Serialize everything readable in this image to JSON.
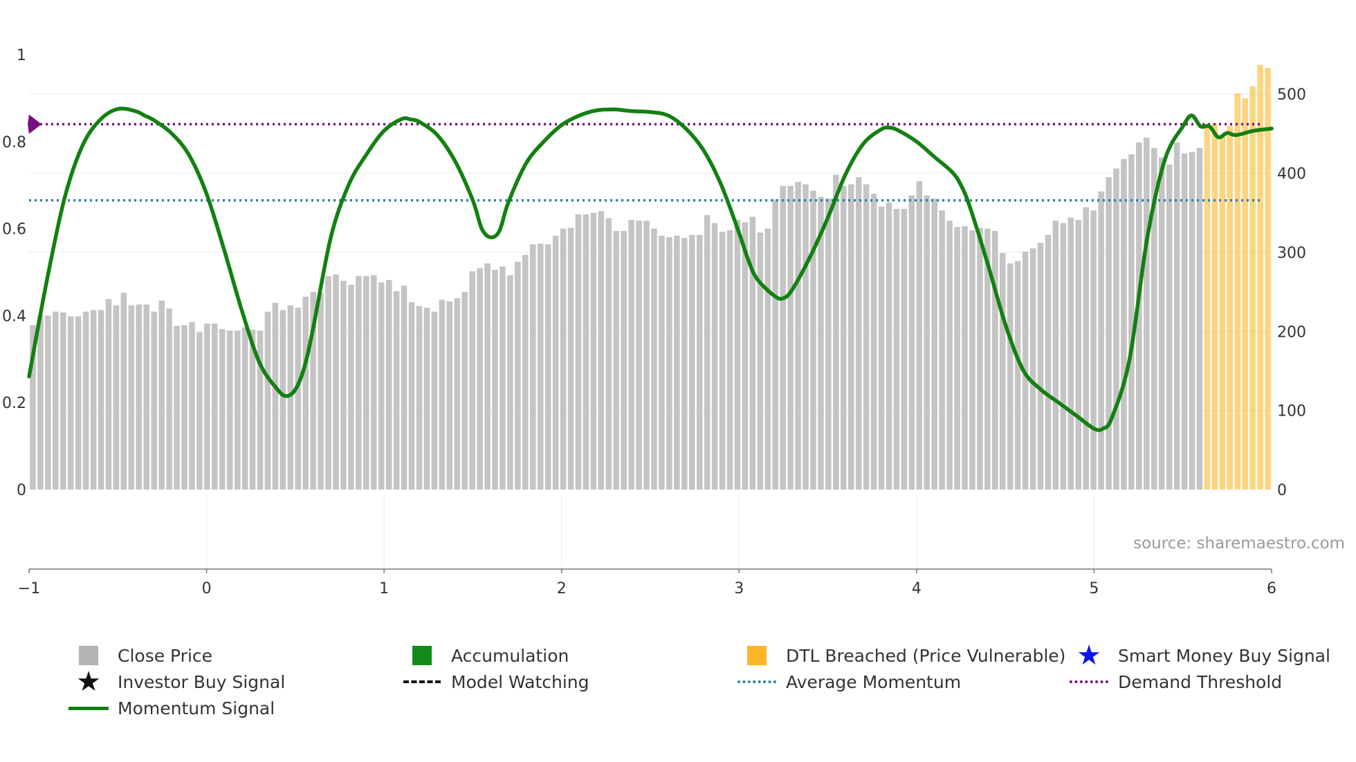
{
  "chart_data": {
    "type": "bar",
    "title": "",
    "source": "source: sharemaestro.com",
    "x_axis": {
      "min": -1,
      "max": 6,
      "ticks": [
        "−1",
        "0",
        "1",
        "2",
        "3",
        "4",
        "5",
        "6"
      ]
    },
    "y_left": {
      "min": 0,
      "max": 1,
      "ticks": [
        "0",
        "0.2",
        "0.4",
        "0.6",
        "0.8",
        "1"
      ],
      "tick_values": [
        0,
        0.2,
        0.4,
        0.6,
        0.8,
        1
      ]
    },
    "y_right": {
      "min": 0,
      "max": 550,
      "ticks": [
        "0",
        "100",
        "200",
        "300",
        "400",
        "500"
      ],
      "tick_values": [
        0,
        100,
        200,
        300,
        400,
        500
      ]
    },
    "close_price": {
      "name": "Close Price",
      "color": "#c4c4c4",
      "values": [
        208,
        220,
        220,
        225,
        224,
        219,
        219,
        225,
        227,
        227,
        241,
        233,
        249,
        233,
        234,
        234,
        225,
        239,
        229,
        207,
        208,
        212,
        199,
        210,
        210,
        203,
        201,
        201,
        205,
        202,
        201,
        225,
        236,
        227,
        233,
        230,
        244,
        250,
        249,
        270,
        272,
        264,
        259,
        270,
        270,
        271,
        262,
        265,
        251,
        258,
        237,
        232,
        230,
        225,
        240,
        238,
        242,
        250,
        276,
        280,
        286,
        278,
        282,
        271,
        288,
        297,
        310,
        311,
        310,
        321,
        330,
        331,
        348,
        348,
        350,
        352,
        343,
        327,
        327,
        341,
        340,
        340,
        330,
        321,
        319,
        321,
        318,
        322,
        322,
        347,
        337,
        326,
        328,
        341,
        338,
        345,
        325,
        330,
        367,
        384,
        384,
        389,
        386,
        378,
        370,
        368,
        398,
        384,
        386,
        395,
        386,
        374,
        358,
        363,
        355,
        355,
        372,
        390,
        372,
        368,
        353,
        340,
        332,
        333,
        328,
        331,
        330,
        327,
        299,
        286,
        289,
        301,
        305,
        312,
        322,
        340,
        337,
        344,
        341,
        357,
        353,
        377,
        395,
        406,
        418,
        424,
        439,
        445,
        432,
        420,
        411,
        439,
        425,
        427,
        432
      ],
      "breached_values": [
        459,
        463,
        446,
        460,
        501,
        495,
        510,
        537,
        533
      ]
    },
    "breached_name": "DTL Breached (Price Vulnerable)",
    "breached_color": "#fcb72a",
    "momentum": {
      "name": "Momentum Signal",
      "color": "#138012",
      "x": [
        -1.0,
        -0.9,
        -0.8,
        -0.7,
        -0.6,
        -0.5,
        -0.4,
        -0.35,
        -0.3,
        -0.2,
        -0.1,
        0.0,
        0.1,
        0.2,
        0.3,
        0.4,
        0.45,
        0.5,
        0.55,
        0.6,
        0.7,
        0.8,
        0.9,
        1.0,
        1.1,
        1.15,
        1.2,
        1.3,
        1.4,
        1.5,
        1.55,
        1.6,
        1.65,
        1.7,
        1.8,
        1.9,
        2.0,
        2.1,
        2.2,
        2.3,
        2.35,
        2.4,
        2.5,
        2.6,
        2.7,
        2.8,
        2.9,
        3.0,
        3.05,
        3.1,
        3.2,
        3.25,
        3.3,
        3.4,
        3.5,
        3.6,
        3.7,
        3.8,
        3.85,
        3.9,
        4.0,
        4.1,
        4.2,
        4.25,
        4.3,
        4.4,
        4.5,
        4.6,
        4.7,
        4.8,
        4.9,
        5.0,
        5.05,
        5.1,
        5.2,
        5.3,
        5.4,
        5.5,
        5.55,
        5.6,
        5.65,
        5.7,
        5.75,
        5.8,
        5.9,
        6.0
      ],
      "y": [
        0.26,
        0.48,
        0.67,
        0.79,
        0.85,
        0.875,
        0.87,
        0.86,
        0.85,
        0.82,
        0.77,
        0.68,
        0.55,
        0.41,
        0.29,
        0.23,
        0.215,
        0.23,
        0.28,
        0.37,
        0.58,
        0.7,
        0.77,
        0.825,
        0.852,
        0.851,
        0.845,
        0.815,
        0.755,
        0.665,
        0.6,
        0.58,
        0.595,
        0.66,
        0.75,
        0.8,
        0.838,
        0.86,
        0.872,
        0.874,
        0.872,
        0.87,
        0.868,
        0.86,
        0.83,
        0.78,
        0.7,
        0.59,
        0.53,
        0.485,
        0.445,
        0.44,
        0.46,
        0.535,
        0.625,
        0.725,
        0.795,
        0.828,
        0.832,
        0.825,
        0.8,
        0.765,
        0.73,
        0.7,
        0.65,
        0.52,
        0.38,
        0.275,
        0.23,
        0.2,
        0.17,
        0.14,
        0.14,
        0.165,
        0.3,
        0.58,
        0.76,
        0.835,
        0.86,
        0.835,
        0.835,
        0.81,
        0.82,
        0.815,
        0.825,
        0.83
      ]
    },
    "average_momentum": {
      "name": "Average Momentum",
      "value": 0.665,
      "color": "#2e7fa8"
    },
    "demand_threshold": {
      "name": "Demand Threshold",
      "value": 0.84,
      "color": "#7a1080"
    },
    "legend": [
      {
        "label": "Close Price",
        "kind": "square",
        "color": "#b3b3b3"
      },
      {
        "label": "Accumulation",
        "kind": "square",
        "color": "#138a1c"
      },
      {
        "label": "DTL Breached (Price Vulnerable)",
        "kind": "square",
        "color": "#fcb72a"
      },
      {
        "label": "Smart Money Buy Signal",
        "kind": "star",
        "color": "#0c18e8"
      },
      {
        "label": "Investor Buy Signal",
        "kind": "star",
        "color": "#111111"
      },
      {
        "label": "Model Watching",
        "kind": "dash",
        "color": "#111111"
      },
      {
        "label": "Average Momentum",
        "kind": "dot",
        "color": "#2e7fa8"
      },
      {
        "label": "Demand Threshold",
        "kind": "dot",
        "color": "#7a1080"
      },
      {
        "label": "Momentum Signal",
        "kind": "line",
        "color": "#138012"
      }
    ]
  }
}
